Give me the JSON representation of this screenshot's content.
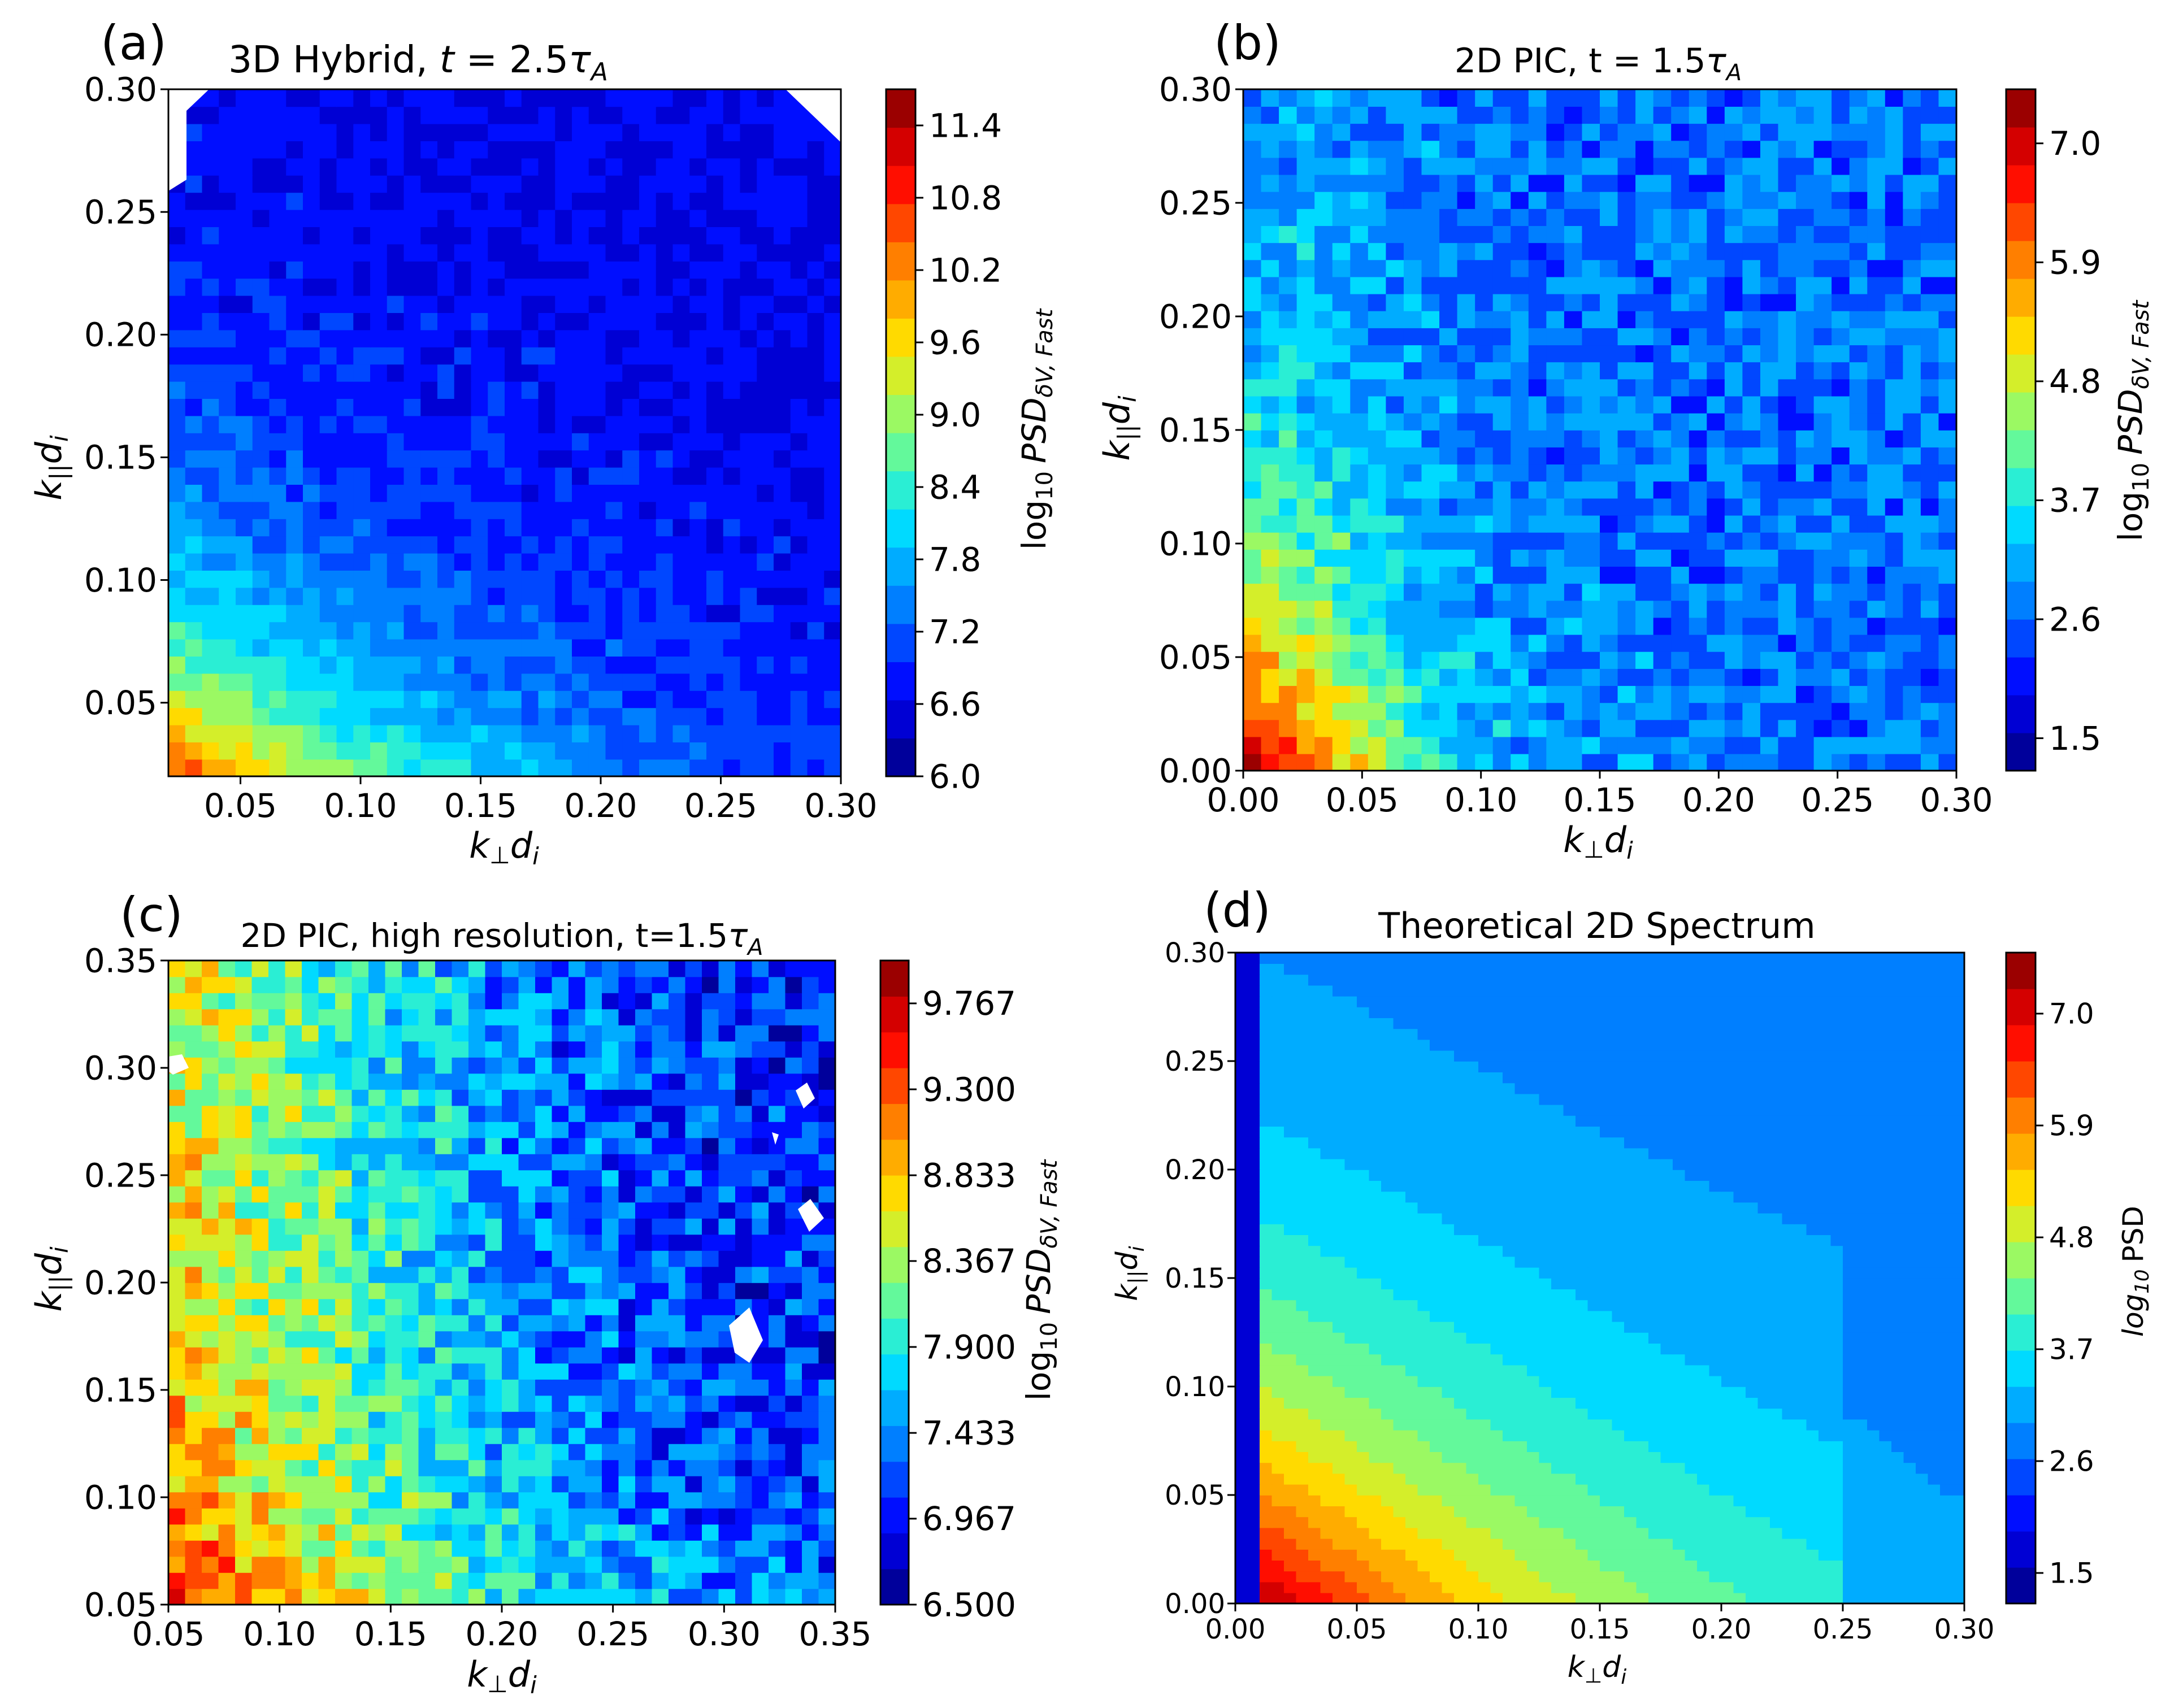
{
  "figure": {
    "colormap": [
      "#00007f",
      "#0000ff",
      "#007fff",
      "#00e5ff",
      "#7fff7f",
      "#ffe500",
      "#ff7f00",
      "#ff0000",
      "#7f0000"
    ]
  },
  "chart_data": [
    {
      "type": "heatmap",
      "panel_label": "(a)",
      "title_main": "3D Hybrid, ",
      "title_math": "t",
      "title_rest": " = 2.5",
      "title_tau": "τ",
      "title_sub": "A",
      "xlabel_main": "k",
      "xlabel_sub_perp": "⊥",
      "xlabel_d": "d",
      "xlabel_sub_i": "i",
      "ylabel_main": "k",
      "ylabel_sub_par": "||",
      "ylabel_d": "d",
      "ylabel_sub_i": "i",
      "xlim": [
        0.02,
        0.3
      ],
      "ylim": [
        0.02,
        0.3
      ],
      "xticks": [
        "0.05",
        "0.10",
        "0.15",
        "0.20",
        "0.25",
        "0.30"
      ],
      "xtick_values": [
        0.05,
        0.1,
        0.15,
        0.2,
        0.25,
        0.3
      ],
      "yticks": [
        "0.05",
        "0.10",
        "0.15",
        "0.20",
        "0.25",
        "0.30"
      ],
      "ytick_values": [
        0.05,
        0.1,
        0.15,
        0.2,
        0.25,
        0.3
      ],
      "colorbar": {
        "label_log": "log",
        "label_log_sub": "10",
        "label_psd": "PSD",
        "label_psd_sub": "δV, Fast",
        "min": 6.0,
        "max": 11.7,
        "ticks": [
          "6.0",
          "6.6",
          "7.2",
          "7.8",
          "8.4",
          "9.0",
          "9.6",
          "10.2",
          "10.8",
          "11.4"
        ],
        "tick_values": [
          6.0,
          6.6,
          7.2,
          7.8,
          8.4,
          9.0,
          9.6,
          10.2,
          10.8,
          11.4
        ]
      },
      "field": {
        "peak": 10.8,
        "floor": 6.6,
        "decay_x": 0.12,
        "decay_y": 0.075,
        "noise": 0.25,
        "seed": 3
      }
    },
    {
      "type": "heatmap",
      "panel_label": "(b)",
      "title_main": "2D PIC, t = 1.5",
      "title_tau": "τ",
      "title_sub": "A",
      "xlabel_main": "k",
      "xlabel_sub_perp": "⊥",
      "xlabel_d": "d",
      "xlabel_sub_i": "i",
      "ylabel_main": "k",
      "ylabel_sub_par": "||",
      "ylabel_d": "d",
      "ylabel_sub_i": "i",
      "xlim": [
        0.0,
        0.3
      ],
      "ylim": [
        0.0,
        0.3
      ],
      "xticks": [
        "0.00",
        "0.05",
        "0.10",
        "0.15",
        "0.20",
        "0.25",
        "0.30"
      ],
      "xtick_values": [
        0.0,
        0.05,
        0.1,
        0.15,
        0.2,
        0.25,
        0.3
      ],
      "yticks": [
        "0.00",
        "0.05",
        "0.10",
        "0.15",
        "0.20",
        "0.25",
        "0.30"
      ],
      "ytick_values": [
        0.0,
        0.05,
        0.1,
        0.15,
        0.2,
        0.25,
        0.3
      ],
      "colorbar": {
        "label_log": "log",
        "label_log_sub": "10",
        "label_psd": "PSD",
        "label_psd_sub": "δV, Fast",
        "min": 1.2,
        "max": 7.5,
        "ticks": [
          "1.5",
          "2.6",
          "3.7",
          "4.8",
          "5.9",
          "7.0"
        ],
        "tick_values": [
          1.5,
          2.6,
          3.7,
          4.8,
          5.9,
          7.0
        ]
      },
      "field": {
        "peak": 7.2,
        "floor": 2.7,
        "decay_x": 0.05,
        "decay_y": 0.09,
        "noise": 0.55,
        "seed": 7
      }
    },
    {
      "type": "heatmap",
      "panel_label": "(c)",
      "title_main": "2D PIC, high resolution, t=1.5",
      "title_tau": "τ",
      "title_sub": "A",
      "xlabel_main": "k",
      "xlabel_sub_perp": "⊥",
      "xlabel_d": "d",
      "xlabel_sub_i": "i",
      "ylabel_main": "k",
      "ylabel_sub_par": "||",
      "ylabel_d": "d",
      "ylabel_sub_i": "i",
      "xlim": [
        0.05,
        0.35
      ],
      "ylim": [
        0.05,
        0.35
      ],
      "xticks": [
        "0.05",
        "0.10",
        "0.15",
        "0.20",
        "0.25",
        "0.30",
        "0.35"
      ],
      "xtick_values": [
        0.05,
        0.1,
        0.15,
        0.2,
        0.25,
        0.3,
        0.35
      ],
      "yticks": [
        "0.05",
        "0.10",
        "0.15",
        "0.20",
        "0.25",
        "0.30",
        "0.35"
      ],
      "ytick_values": [
        0.05,
        0.1,
        0.15,
        0.2,
        0.25,
        0.3,
        0.35
      ],
      "colorbar": {
        "label_log": "log",
        "label_log_sub": "10",
        "label_psd": "PSD",
        "label_psd_sub": "δV, Fast",
        "min": 6.5,
        "max": 10.0,
        "ticks": [
          "6.500",
          "6.967",
          "7.433",
          "7.900",
          "8.367",
          "8.833",
          "9.300",
          "9.767"
        ],
        "tick_values": [
          6.5,
          6.967,
          7.433,
          7.9,
          8.367,
          8.833,
          9.3,
          9.767
        ]
      },
      "field": {
        "peak": 9.0,
        "floor": 6.9,
        "decay_x": 0.14,
        "decay_y": 0.55,
        "noise": 0.45,
        "seed": 11
      }
    },
    {
      "type": "heatmap",
      "panel_label": "(d)",
      "title_main": "Theoretical 2D Spectrum",
      "xlabel_main": "k",
      "xlabel_sub_perp": "⊥",
      "xlabel_d": "d",
      "xlabel_sub_i": "i",
      "ylabel_main": "k",
      "ylabel_sub_par": "||",
      "ylabel_d": "d",
      "ylabel_sub_i": "i",
      "xlim": [
        0.0,
        0.3
      ],
      "ylim": [
        0.0,
        0.3
      ],
      "xticks": [
        "0.00",
        "0.05",
        "0.10",
        "0.15",
        "0.20",
        "0.25",
        "0.30"
      ],
      "xtick_values": [
        0.0,
        0.05,
        0.1,
        0.15,
        0.2,
        0.25,
        0.3
      ],
      "yticks": [
        "0.00",
        "0.05",
        "0.10",
        "0.15",
        "0.20",
        "0.25",
        "0.30"
      ],
      "ytick_values": [
        0.0,
        0.05,
        0.1,
        0.15,
        0.2,
        0.25,
        0.3
      ],
      "colorbar": {
        "label_log": "log",
        "label_log_sub": "10",
        "label_psd": "PSD",
        "min": 1.2,
        "max": 7.6,
        "ticks": [
          "1.5",
          "2.6",
          "3.7",
          "4.8",
          "5.9",
          "7.0"
        ],
        "tick_values": [
          1.5,
          2.6,
          3.7,
          4.8,
          5.9,
          7.0
        ]
      },
      "field": {
        "peak": 7.0,
        "floor": 2.6,
        "decay_x": 0.1,
        "decay_y": 0.1,
        "noise": 0.0,
        "seed": 1
      }
    }
  ]
}
